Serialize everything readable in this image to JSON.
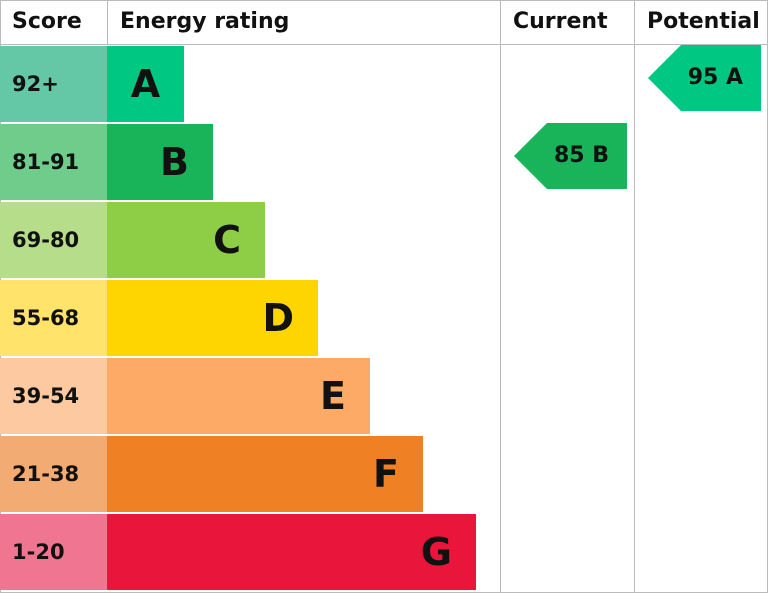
{
  "header": {
    "score": "Score",
    "rating": "Energy rating",
    "current": "Current",
    "potential": "Potential"
  },
  "rows": [
    {
      "score": "92+",
      "letter": "A"
    },
    {
      "score": "81-91",
      "letter": "B"
    },
    {
      "score": "69-80",
      "letter": "C"
    },
    {
      "score": "55-68",
      "letter": "D"
    },
    {
      "score": "39-54",
      "letter": "E"
    },
    {
      "score": "21-38",
      "letter": "F"
    },
    {
      "score": "1-20",
      "letter": "G"
    }
  ],
  "current": {
    "label": "85 B"
  },
  "potential": {
    "label": "95 A"
  }
}
